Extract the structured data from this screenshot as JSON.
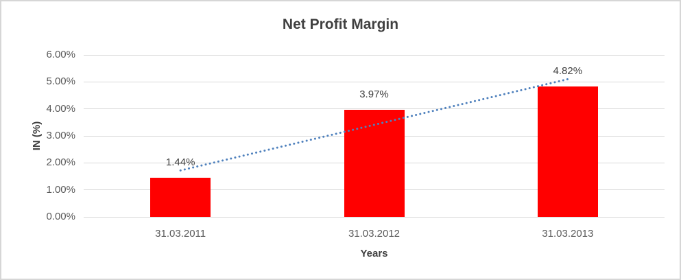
{
  "chart_data": {
    "type": "bar",
    "title": "Net Profit Margin",
    "xlabel": "Years",
    "ylabel": "IN (%)",
    "categories": [
      "31.03.2011",
      "31.03.2012",
      "31.03.2013"
    ],
    "values": [
      1.44,
      3.97,
      4.82
    ],
    "data_labels": [
      "1.44%",
      "3.97%",
      "4.82%"
    ],
    "ylim": [
      0,
      6
    ],
    "ytick_step": 1,
    "ytick_labels": [
      "0.00%",
      "1.00%",
      "2.00%",
      "3.00%",
      "4.00%",
      "5.00%",
      "6.00%"
    ],
    "grid": true,
    "legend": "none",
    "bar_color": "#ff0000",
    "trendline": {
      "type": "linear",
      "style": "dotted",
      "color": "#4f81bd"
    },
    "colors": {
      "title_text": "#404040",
      "axis_text": "#595959",
      "data_label_text": "#404040",
      "gridline": "#d9d9d9",
      "frame_border": "#d6d6d6",
      "background": "#ffffff"
    }
  }
}
